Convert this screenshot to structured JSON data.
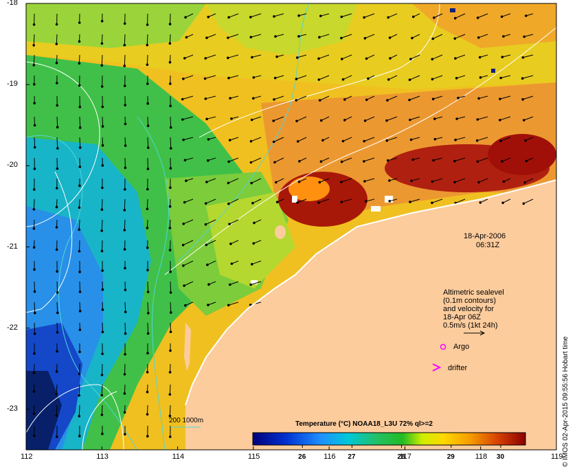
{
  "map": {
    "lon_ticks": [
      "112",
      "113",
      "114",
      "115",
      "116",
      "117",
      "118",
      "119"
    ],
    "lat_ticks": [
      "-18",
      "-19",
      "-20",
      "-21",
      "-22",
      "-23"
    ],
    "lon_range": [
      112,
      119
    ],
    "lat_range": [
      -23.5,
      -18
    ]
  },
  "date_label": "18-Apr-2006",
  "time_label": "06:31Z",
  "legend": {
    "line1": "Altimetric sealevel",
    "line2": "(0.1m contours)",
    "line3": "and velocity for",
    "line4": "18-Apr 06Z",
    "line5": "0.5m/s (1kt 24h)",
    "argo_label": "Argo",
    "drifter_label": "drifter"
  },
  "depth_legend": "200  1000m",
  "colorbar": {
    "title": "Temperature (°C) NOAA18_L3U 72% ql>=2",
    "ticks": [
      "26",
      "27",
      "28",
      "29",
      "30"
    ],
    "range": [
      25,
      30.5
    ]
  },
  "credit": "© IMOS 02-Apr-2015 09:55:56 Hobart time",
  "colors": {
    "land": "#fccc9d",
    "argo": "#ff00ff",
    "drifter": "#ff00ff",
    "contour": "#ffffff",
    "isobath": "#4fd6d6"
  }
}
